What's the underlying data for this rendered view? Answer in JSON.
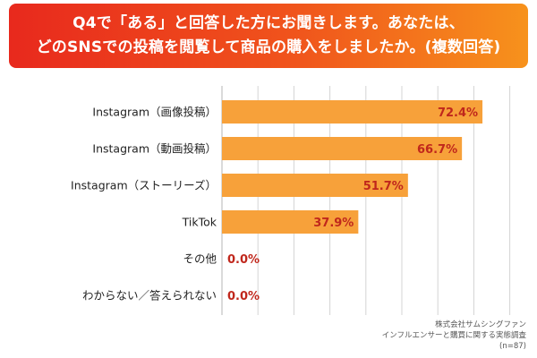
{
  "header": {
    "title_line1": "Q4で「ある」と回答した方にお聞きします。あなたは、",
    "title_line2": "どのSNSでの投稿を閲覧して商品の購入をしましたか。(複数回答)"
  },
  "chart_data": {
    "type": "bar",
    "orientation": "horizontal",
    "categories": [
      "Instagram（画像投稿）",
      "Instagram（動画投稿）",
      "Instagram（ストーリーズ）",
      "TikTok",
      "その他",
      "わからない／答えられない"
    ],
    "values": [
      72.4,
      66.7,
      51.7,
      37.9,
      0.0,
      0.0
    ],
    "value_labels": [
      "72.4%",
      "66.7%",
      "51.7%",
      "37.9%",
      "0.0%",
      "0.0%"
    ],
    "xlim": [
      0,
      100
    ],
    "grid": true,
    "bar_color": "#f7a13a",
    "label_color": "#c0271c"
  },
  "source": {
    "line1": "株式会社サムシングファン",
    "line2": "インフルエンサーと購買に関する実態調査",
    "line3": "(n=87)"
  }
}
